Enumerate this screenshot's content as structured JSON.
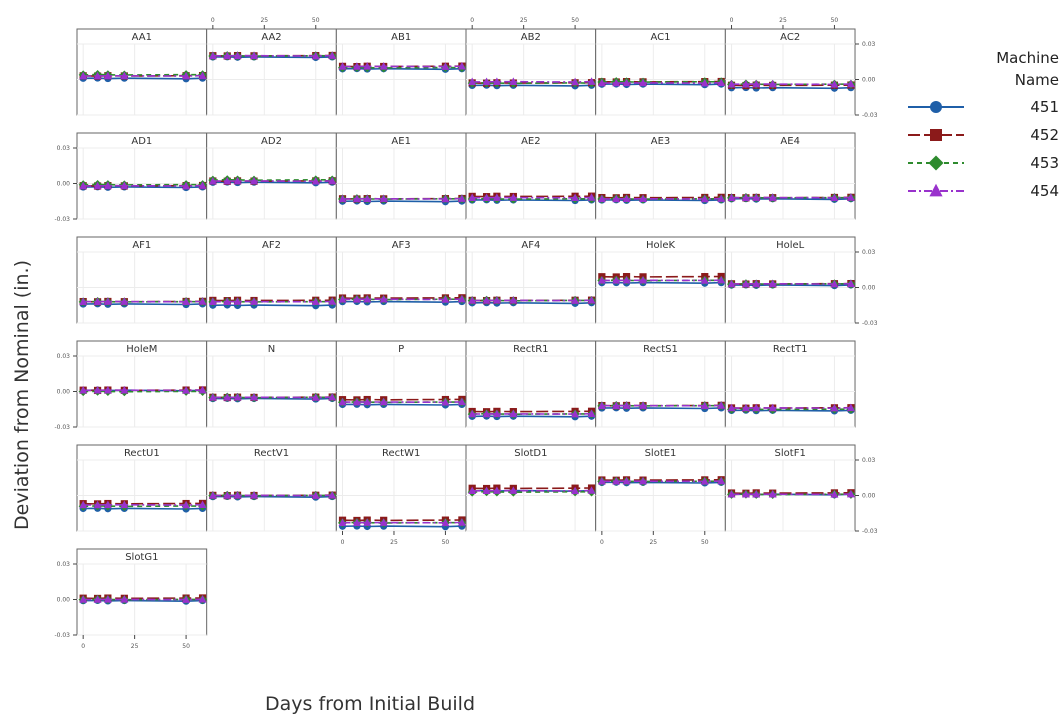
{
  "chart_data": {
    "type": "line",
    "subtype": "faceted line chart with markers",
    "xlabel": "Days from Initial Build",
    "ylabel": "Deviation from Nominal (in.)",
    "x_ticks": [
      0,
      25,
      50
    ],
    "x_tick_labels": [
      "0",
      "25",
      "50"
    ],
    "xlim": [
      -3,
      60
    ],
    "y_ticks": [
      -0.03,
      0.0,
      0.03
    ],
    "y_tick_labels": [
      "-0.03",
      "0.00",
      "0.03"
    ],
    "ylim": [
      -0.03,
      0.03
    ],
    "grid": true,
    "legend": {
      "title_lines": [
        "Machine",
        "Name"
      ],
      "placement": "right",
      "entries": [
        {
          "label": "451",
          "color": "#1f5fa8",
          "marker": "circle",
          "dash": "solid"
        },
        {
          "label": "452",
          "color": "#8b1a1a",
          "marker": "square",
          "dash": "long-dash"
        },
        {
          "label": "453",
          "color": "#2e8b2e",
          "marker": "diamond",
          "dash": "dash"
        },
        {
          "label": "454",
          "color": "#9932cc",
          "marker": "triangle",
          "dash": "dash-dot"
        }
      ]
    },
    "x_days": [
      0,
      7,
      12,
      20,
      50,
      58
    ],
    "panels": [
      {
        "name": "AA1",
        "levels": [
          0.001,
          0.003,
          0.004,
          0.003
        ]
      },
      {
        "name": "AA2",
        "levels": [
          0.019,
          0.02,
          0.02,
          0.02
        ]
      },
      {
        "name": "AB1",
        "levels": [
          0.009,
          0.011,
          0.01,
          0.011
        ]
      },
      {
        "name": "AB2",
        "levels": [
          -0.005,
          -0.003,
          -0.003,
          -0.002
        ]
      },
      {
        "name": "AC1",
        "levels": [
          -0.004,
          -0.002,
          -0.002,
          -0.003
        ]
      },
      {
        "name": "AC2",
        "levels": [
          -0.007,
          -0.005,
          -0.004,
          -0.004
        ]
      },
      {
        "name": "AD1",
        "levels": [
          -0.003,
          -0.002,
          -0.001,
          -0.002
        ]
      },
      {
        "name": "AD2",
        "levels": [
          0.001,
          0.002,
          0.003,
          0.002
        ]
      },
      {
        "name": "AE1",
        "levels": [
          -0.015,
          -0.013,
          -0.013,
          -0.013
        ]
      },
      {
        "name": "AE2",
        "levels": [
          -0.014,
          -0.011,
          -0.013,
          -0.012
        ]
      },
      {
        "name": "AE3",
        "levels": [
          -0.014,
          -0.012,
          -0.013,
          -0.013
        ]
      },
      {
        "name": "AE4",
        "levels": [
          -0.013,
          -0.012,
          -0.012,
          -0.012
        ]
      },
      {
        "name": "AF1",
        "levels": [
          -0.014,
          -0.012,
          -0.012,
          -0.012
        ]
      },
      {
        "name": "AF2",
        "levels": [
          -0.015,
          -0.011,
          -0.012,
          -0.012
        ]
      },
      {
        "name": "AF3",
        "levels": [
          -0.012,
          -0.009,
          -0.01,
          -0.01
        ]
      },
      {
        "name": "AF4",
        "levels": [
          -0.013,
          -0.011,
          -0.011,
          -0.011
        ]
      },
      {
        "name": "HoleK",
        "levels": [
          0.004,
          0.009,
          0.006,
          0.006
        ]
      },
      {
        "name": "HoleL",
        "levels": [
          0.002,
          0.003,
          0.003,
          0.003
        ]
      },
      {
        "name": "HoleM",
        "levels": [
          0.001,
          0.001,
          0.0,
          0.001
        ]
      },
      {
        "name": "N",
        "levels": [
          -0.006,
          -0.005,
          -0.005,
          -0.005
        ]
      },
      {
        "name": "P",
        "levels": [
          -0.011,
          -0.007,
          -0.009,
          -0.009
        ]
      },
      {
        "name": "RectR1",
        "levels": [
          -0.021,
          -0.017,
          -0.019,
          -0.019
        ]
      },
      {
        "name": "RectS1",
        "levels": [
          -0.014,
          -0.012,
          -0.012,
          -0.012
        ]
      },
      {
        "name": "RectT1",
        "levels": [
          -0.016,
          -0.014,
          -0.015,
          -0.014
        ]
      },
      {
        "name": "RectU1",
        "levels": [
          -0.011,
          -0.007,
          -0.009,
          -0.008
        ]
      },
      {
        "name": "RectV1",
        "levels": [
          -0.001,
          0.0,
          0.0,
          0.0
        ]
      },
      {
        "name": "RectW1",
        "levels": [
          -0.026,
          -0.021,
          -0.023,
          -0.023
        ]
      },
      {
        "name": "SlotD1",
        "levels": [
          0.004,
          0.006,
          0.003,
          0.004
        ]
      },
      {
        "name": "SlotE1",
        "levels": [
          0.011,
          0.013,
          0.012,
          0.012
        ]
      },
      {
        "name": "SlotF1",
        "levels": [
          0.001,
          0.002,
          0.001,
          0.001
        ]
      },
      {
        "name": "SlotG1",
        "levels": [
          -0.001,
          0.001,
          0.0,
          0.0
        ]
      }
    ]
  }
}
